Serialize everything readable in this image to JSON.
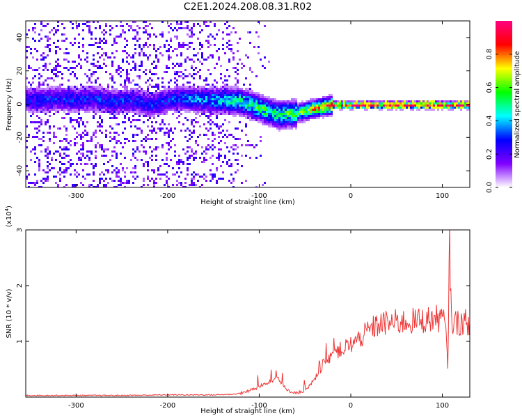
{
  "title": "C2E1.2024.208.08.31.R02",
  "chart_data": [
    {
      "type": "heatmap",
      "xlabel": "Height of straight line (km)",
      "ylabel": "Frequency (Hz)",
      "xlim": [
        -355,
        130
      ],
      "ylim": [
        -50,
        50
      ],
      "xticks": [
        -300,
        -200,
        -100,
        0,
        100
      ],
      "yticks": [
        -40,
        -20,
        0,
        20,
        40
      ],
      "colorbar": {
        "label": "Normalized spectral amplitude",
        "range": [
          0,
          1
        ],
        "ticks": [
          0.0,
          0.2,
          0.4,
          0.6,
          0.8
        ],
        "colormap": [
          "#ffffff",
          "#8000ff",
          "#0000ff",
          "#00ffff",
          "#00ff00",
          "#ffff00",
          "#ff0000",
          "#ff0080"
        ]
      },
      "ridge": [
        [
          -340,
          3,
          0.3
        ],
        [
          -320,
          4,
          0.3
        ],
        [
          -300,
          3,
          0.3
        ],
        [
          -280,
          4,
          0.3
        ],
        [
          -260,
          2,
          0.3
        ],
        [
          -240,
          3,
          0.3
        ],
        [
          -220,
          0,
          0.3
        ],
        [
          -200,
          3,
          0.3
        ],
        [
          -180,
          4,
          0.35
        ],
        [
          -160,
          3,
          0.4
        ],
        [
          -140,
          3,
          0.45
        ],
        [
          -120,
          2,
          0.5
        ],
        [
          -100,
          -2,
          0.55
        ],
        [
          -80,
          -6,
          0.55
        ],
        [
          -60,
          -5,
          0.6
        ],
        [
          -40,
          -2,
          0.75
        ],
        [
          -20,
          0,
          0.9
        ],
        [
          0,
          0,
          1.0
        ],
        [
          50,
          0,
          1.0
        ],
        [
          100,
          0,
          1.0
        ],
        [
          130,
          0,
          1.0
        ]
      ]
    },
    {
      "type": "line",
      "xlabel": "Height of straight line (km)",
      "ylabel": "SNR (10 * v/v)",
      "yscale_label": "(x10",
      "yscale_exp": "4",
      "yscale_close": ")",
      "xlim": [
        -355,
        130
      ],
      "ylim": [
        0,
        3
      ],
      "xticks": [
        -300,
        -200,
        -100,
        0,
        100
      ],
      "yticks": [
        1,
        2,
        3
      ],
      "color": "#ee3333",
      "series": [
        {
          "x": [
            -355,
            -300,
            -250,
            -200,
            -150,
            -130,
            -120,
            -110,
            -100,
            -90,
            -80,
            -70,
            -60,
            -50,
            -40,
            -30,
            -20,
            -10,
            0,
            10,
            20,
            30,
            40,
            60,
            80,
            100,
            103,
            106,
            108,
            110,
            120,
            130
          ],
          "values": [
            0.03,
            0.03,
            0.03,
            0.04,
            0.04,
            0.05,
            0.07,
            0.12,
            0.18,
            0.28,
            0.35,
            0.12,
            0.08,
            0.1,
            0.3,
            0.6,
            0.8,
            0.85,
            0.95,
            1.05,
            1.2,
            1.3,
            1.33,
            1.35,
            1.38,
            1.42,
            1.3,
            0.6,
            2.8,
            1.35,
            1.33,
            1.35
          ]
        }
      ]
    }
  ]
}
